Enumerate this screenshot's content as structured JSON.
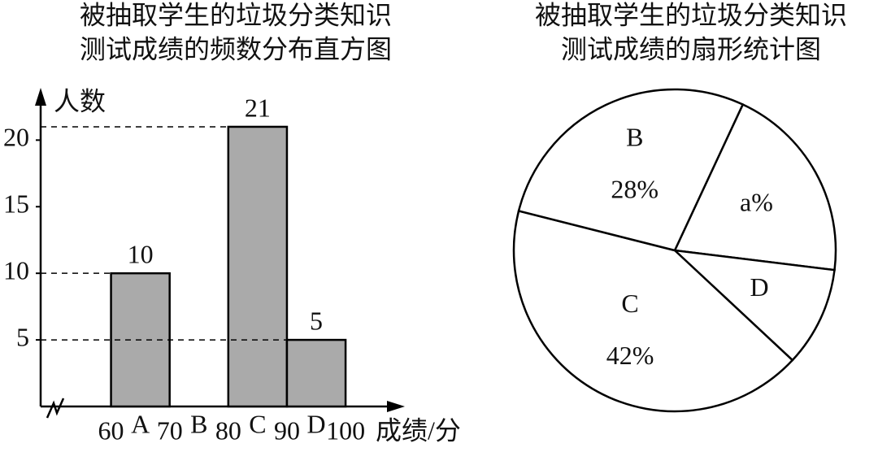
{
  "chart_data": [
    {
      "type": "histogram",
      "title": [
        "被抽取学生的垃圾分类知识",
        "测试成绩的频数分布直方图"
      ],
      "ylabel": "人数",
      "xlabel": "成绩/分",
      "bins": [
        60,
        70,
        80,
        90,
        100
      ],
      "categories": [
        "A",
        "B",
        "C",
        "D"
      ],
      "values": [
        10,
        null,
        21,
        5
      ],
      "color": "#aaaaaa",
      "xlim": [
        48,
        109
      ],
      "ylim": [
        0,
        23.5
      ],
      "yticks": [
        5,
        10,
        15,
        20
      ]
    },
    {
      "type": "pie",
      "title": [
        "被抽取学生的垃圾分类知识",
        "测试成绩的扇形统计图"
      ],
      "categories": [
        null,
        "D",
        "C",
        "B"
      ],
      "values": [
        20,
        10,
        42,
        28
      ],
      "value_labels": [
        "a%",
        null,
        "42%",
        "28%"
      ],
      "color": "#ffffff"
    }
  ]
}
